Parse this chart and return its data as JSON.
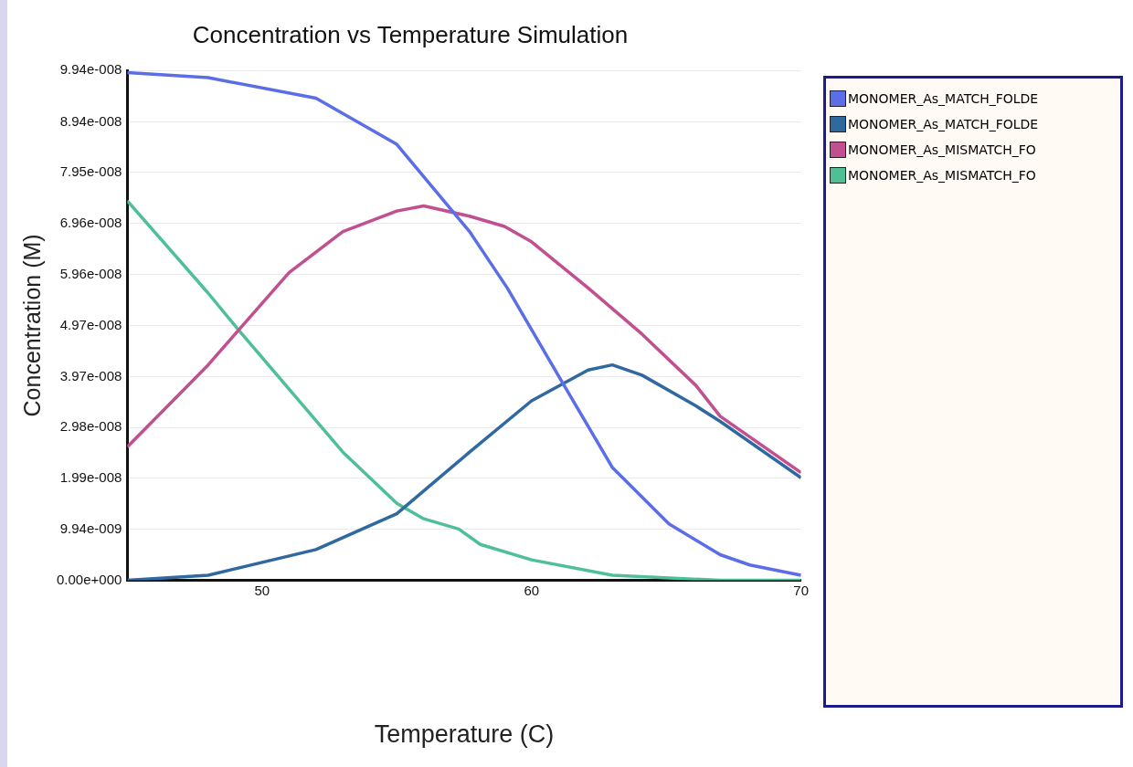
{
  "chart_data": {
    "type": "line",
    "title": "Concentration vs Temperature Simulation",
    "xlabel": "Temperature (C)",
    "ylabel": "Concentration (M)",
    "xlim": [
      45,
      70
    ],
    "xticks": [
      50,
      60,
      70
    ],
    "ylim": [
      0,
      9.94e-08
    ],
    "yticks": [
      {
        "value": 0,
        "label": "0.00e+000"
      },
      {
        "value": 9.94e-09,
        "label": "9.94e-009"
      },
      {
        "value": 1.99e-08,
        "label": "1.99e-008"
      },
      {
        "value": 2.98e-08,
        "label": "2.98e-008"
      },
      {
        "value": 3.97e-08,
        "label": "3.97e-008"
      },
      {
        "value": 4.97e-08,
        "label": "4.97e-008"
      },
      {
        "value": 5.96e-08,
        "label": "5.96e-008"
      },
      {
        "value": 6.96e-08,
        "label": "6.96e-008"
      },
      {
        "value": 7.95e-08,
        "label": "7.95e-008"
      },
      {
        "value": 8.94e-08,
        "label": "8.94e-008"
      },
      {
        "value": 9.94e-08,
        "label": "9.94e-008"
      }
    ],
    "grid": "y",
    "legend": "right",
    "marker": "none",
    "line_style": "solid",
    "series": [
      {
        "name": "MONOMER_As_MATCH_FOLDE",
        "color": "#5b6ee8",
        "x": [
          45,
          48,
          52,
          55,
          57.7,
          59.1,
          61.1,
          63,
          65.1,
          67,
          68.1,
          70
        ],
        "values": [
          9.9e-08,
          9.8e-08,
          9.4e-08,
          8.5e-08,
          6.8e-08,
          5.7e-08,
          3.9e-08,
          2.2e-08,
          1.1e-08,
          5e-09,
          3e-09,
          1e-09
        ]
      },
      {
        "name": "MONOMER_As_MATCH_FOLDE",
        "color": "#2f69a0",
        "x": [
          45,
          48,
          52,
          55,
          57.7,
          60,
          62.1,
          63,
          64.1,
          66.1,
          67,
          70
        ],
        "values": [
          0,
          1e-09,
          6e-09,
          1.3e-08,
          2.5e-08,
          3.5e-08,
          4.1e-08,
          4.2e-08,
          4e-08,
          3.4e-08,
          3.1e-08,
          2e-08
        ]
      },
      {
        "name": "MONOMER_As_MISMATCH_FO",
        "color": "#c0508f",
        "x": [
          45,
          48,
          51,
          53,
          55,
          56,
          57.7,
          59,
          60,
          62.1,
          64.1,
          66.1,
          67,
          70
        ],
        "values": [
          2.6e-08,
          4.2e-08,
          6e-08,
          6.8e-08,
          7.2e-08,
          7.3e-08,
          7.1e-08,
          6.9e-08,
          6.6e-08,
          5.7e-08,
          4.8e-08,
          3.8e-08,
          3.2e-08,
          2.1e-08
        ]
      },
      {
        "name": "MONOMER_As_MISMATCH_FO",
        "color": "#4fbf98",
        "x": [
          45,
          48,
          49.1,
          53,
          55,
          56,
          57.3,
          58.1,
          60,
          63,
          67,
          70
        ],
        "values": [
          7.4e-08,
          5.6e-08,
          4.9e-08,
          2.5e-08,
          1.5e-08,
          1.2e-08,
          1e-08,
          7e-09,
          4e-09,
          1e-09,
          0,
          0
        ]
      }
    ]
  }
}
